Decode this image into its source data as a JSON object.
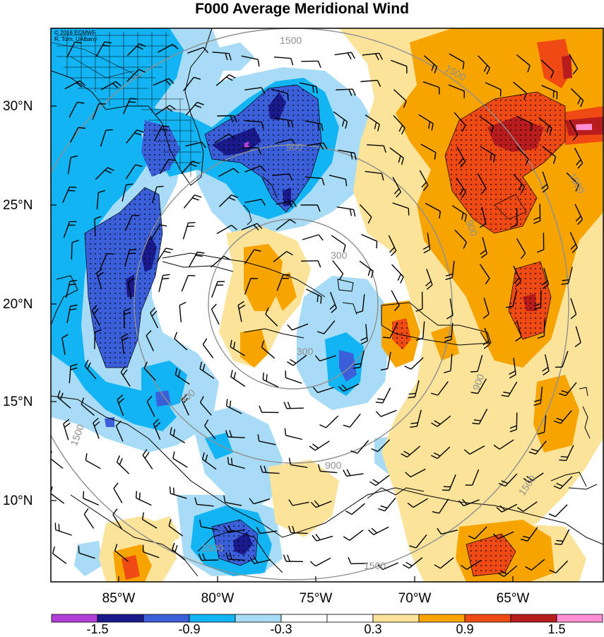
{
  "title": "F000 Average Meridional Wind",
  "credit": {
    "line1": "© 2016 ECMWF",
    "line2": "R. Torn, UAlbany"
  },
  "lat_labels": [
    "30°N",
    "25°N",
    "20°N",
    "15°N",
    "10°N"
  ],
  "lon_labels": [
    "85°W",
    "80°W",
    "75°W",
    "70°W",
    "65°W"
  ],
  "colorbar": {
    "labels": [
      "-1.5",
      "-0.9",
      "-0.3",
      "0.3",
      "0.9",
      "1.5"
    ],
    "colors": [
      "#b040d8",
      "#1a1a8c",
      "#3a5fd8",
      "#12b4f4",
      "#a8dcf6",
      "#ffffff",
      "#ffffff",
      "#fbe39a",
      "#f7a400",
      "#f04a14",
      "#b81c1c",
      "#ff8ed2"
    ]
  },
  "range_rings": [
    "300",
    "900",
    "1500"
  ],
  "colors": {
    "neg_strong": "#1a1a8c",
    "neg_mid": "#3a5fd8",
    "neg_light": "#12b4f4",
    "neg_pale": "#a8dcf6",
    "pos_pale": "#fbe39a",
    "pos_light": "#f7a400",
    "pos_mid": "#f04a14",
    "pos_strong": "#b81c1c",
    "pos_extreme": "#ff8ed2",
    "ring": "#909090",
    "coast": "#000000"
  }
}
